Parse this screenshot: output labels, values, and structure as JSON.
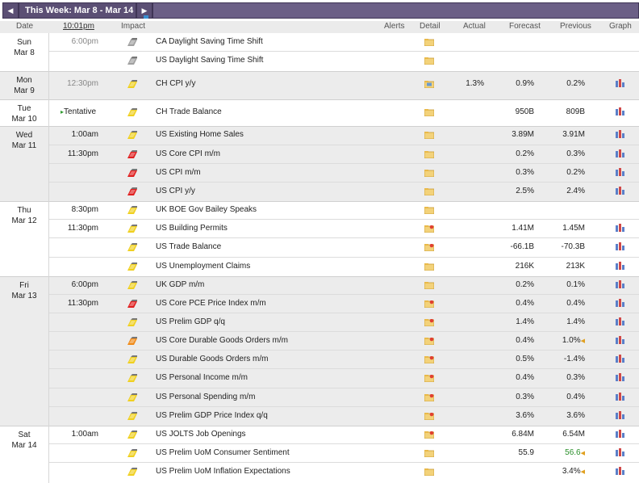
{
  "toolbar": {
    "prev": "◀",
    "week_title": "This Week: Mar 8 - Mar 14",
    "next": "▶"
  },
  "header": {
    "date": "Date",
    "time": "10:01pm",
    "impact": "Impact",
    "alerts": "Alerts",
    "detail": "Detail",
    "actual": "Actual",
    "forecast": "Forecast",
    "previous": "Previous",
    "graph": "Graph"
  },
  "colors": {
    "nav_bg": "#5b4f74",
    "row_alt": "#ececec",
    "impact_low": "#f0d020",
    "impact_med": "#f08a18",
    "impact_high": "#e02020",
    "impact_holiday": "#a0a0a0",
    "green_value": "#2a8f2a"
  },
  "days": [
    {
      "day": "Sun",
      "date": "Mar 8"
    },
    {
      "day": "Mon",
      "date": "Mar 9"
    },
    {
      "day": "Tue",
      "date": "Mar 10"
    },
    {
      "day": "Wed",
      "date": "Mar 11"
    },
    {
      "day": "Thu",
      "date": "Mar 12"
    },
    {
      "day": "Fri",
      "date": "Mar 13"
    },
    {
      "day": "Sat",
      "date": "Mar 14"
    }
  ],
  "events": [
    {
      "time": "6:00pm",
      "impact": "grey",
      "title": "CA Daylight Saving Time Shift",
      "detail": "folder-icon",
      "actual": "",
      "forecast": "",
      "previous": "",
      "graph": false
    },
    {
      "time": "",
      "impact": "grey",
      "title": "US Daylight Saving Time Shift",
      "detail": "folder-icon",
      "actual": "",
      "forecast": "",
      "previous": "",
      "graph": false
    },
    {
      "time": "12:30pm",
      "impact": "yellow",
      "title": "CH CPI y/y",
      "detail": "report-icon",
      "actual": "1.3%",
      "forecast": "0.9%",
      "previous": "0.2%",
      "graph": true
    },
    {
      "time": "Tentative",
      "impact": "yellow",
      "title": "CH Trade Balance",
      "detail": "folder-icon",
      "actual": "",
      "forecast": "950B",
      "previous": "809B",
      "graph": true
    },
    {
      "time": "1:00am",
      "impact": "yellow",
      "title": "US Existing Home Sales",
      "detail": "folder-icon",
      "actual": "",
      "forecast": "3.89M",
      "previous": "3.91M",
      "graph": true
    },
    {
      "time": "11:30pm",
      "impact": "red",
      "title": "US Core CPI m/m",
      "detail": "folder-icon",
      "actual": "",
      "forecast": "0.2%",
      "previous": "0.3%",
      "graph": true
    },
    {
      "time": "",
      "impact": "red",
      "title": "US CPI m/m",
      "detail": "folder-icon",
      "actual": "",
      "forecast": "0.3%",
      "previous": "0.2%",
      "graph": true
    },
    {
      "time": "",
      "impact": "red",
      "title": "US CPI y/y",
      "detail": "folder-icon",
      "actual": "",
      "forecast": "2.5%",
      "previous": "2.4%",
      "graph": true
    },
    {
      "time": "8:30pm",
      "impact": "yellow",
      "title": "UK BOE Gov Bailey Speaks",
      "detail": "folder-icon",
      "actual": "",
      "forecast": "",
      "previous": "",
      "graph": false
    },
    {
      "time": "11:30pm",
      "impact": "yellow",
      "title": "US Building Permits",
      "detail": "star-folder-icon",
      "actual": "",
      "forecast": "1.41M",
      "previous": "1.45M",
      "graph": true
    },
    {
      "time": "",
      "impact": "yellow",
      "title": "US Trade Balance",
      "detail": "star-folder-icon",
      "actual": "",
      "forecast": "-66.1B",
      "previous": "-70.3B",
      "graph": true
    },
    {
      "time": "",
      "impact": "yellow",
      "title": "US Unemployment Claims",
      "detail": "folder-icon",
      "actual": "",
      "forecast": "216K",
      "previous": "213K",
      "graph": true
    },
    {
      "time": "6:00pm",
      "impact": "yellow",
      "title": "UK GDP m/m",
      "detail": "folder-icon",
      "actual": "",
      "forecast": "0.2%",
      "previous": "0.1%",
      "graph": true
    },
    {
      "time": "11:30pm",
      "impact": "red",
      "title": "US Core PCE Price Index m/m",
      "detail": "star-folder-icon",
      "actual": "",
      "forecast": "0.4%",
      "previous": "0.4%",
      "graph": true
    },
    {
      "time": "",
      "impact": "yellow",
      "title": "US Prelim GDP q/q",
      "detail": "star-folder-icon",
      "actual": "",
      "forecast": "1.4%",
      "previous": "1.4%",
      "graph": true
    },
    {
      "time": "",
      "impact": "orange",
      "title": "US Core Durable Goods Orders m/m",
      "detail": "star-folder-icon",
      "actual": "",
      "forecast": "0.4%",
      "previous": "1.0%",
      "graph": true,
      "revised": true
    },
    {
      "time": "",
      "impact": "yellow",
      "title": "US Durable Goods Orders m/m",
      "detail": "star-folder-icon",
      "actual": "",
      "forecast": "0.5%",
      "previous": "-1.4%",
      "graph": true
    },
    {
      "time": "",
      "impact": "yellow",
      "title": "US Personal Income m/m",
      "detail": "star-folder-icon",
      "actual": "",
      "forecast": "0.4%",
      "previous": "0.3%",
      "graph": true
    },
    {
      "time": "",
      "impact": "yellow",
      "title": "US Personal Spending m/m",
      "detail": "star-folder-icon",
      "actual": "",
      "forecast": "0.3%",
      "previous": "0.4%",
      "graph": true
    },
    {
      "time": "",
      "impact": "yellow",
      "title": "US Prelim GDP Price Index q/q",
      "detail": "star-folder-icon",
      "actual": "",
      "forecast": "3.6%",
      "previous": "3.6%",
      "graph": true
    },
    {
      "time": "1:00am",
      "impact": "yellow",
      "title": "US JOLTS Job Openings",
      "detail": "star-folder-icon",
      "actual": "",
      "forecast": "6.84M",
      "previous": "6.54M",
      "graph": true
    },
    {
      "time": "",
      "impact": "yellow",
      "title": "US Prelim UoM Consumer Sentiment",
      "detail": "folder-icon",
      "actual": "",
      "forecast": "55.9",
      "previous": "56.6",
      "graph": true,
      "revised": true,
      "previous_color": "green"
    },
    {
      "time": "",
      "impact": "yellow",
      "title": "US Prelim UoM Inflation Expectations",
      "detail": "folder-icon",
      "actual": "",
      "forecast": "",
      "previous": "3.4%",
      "graph": true,
      "revised": true
    }
  ]
}
